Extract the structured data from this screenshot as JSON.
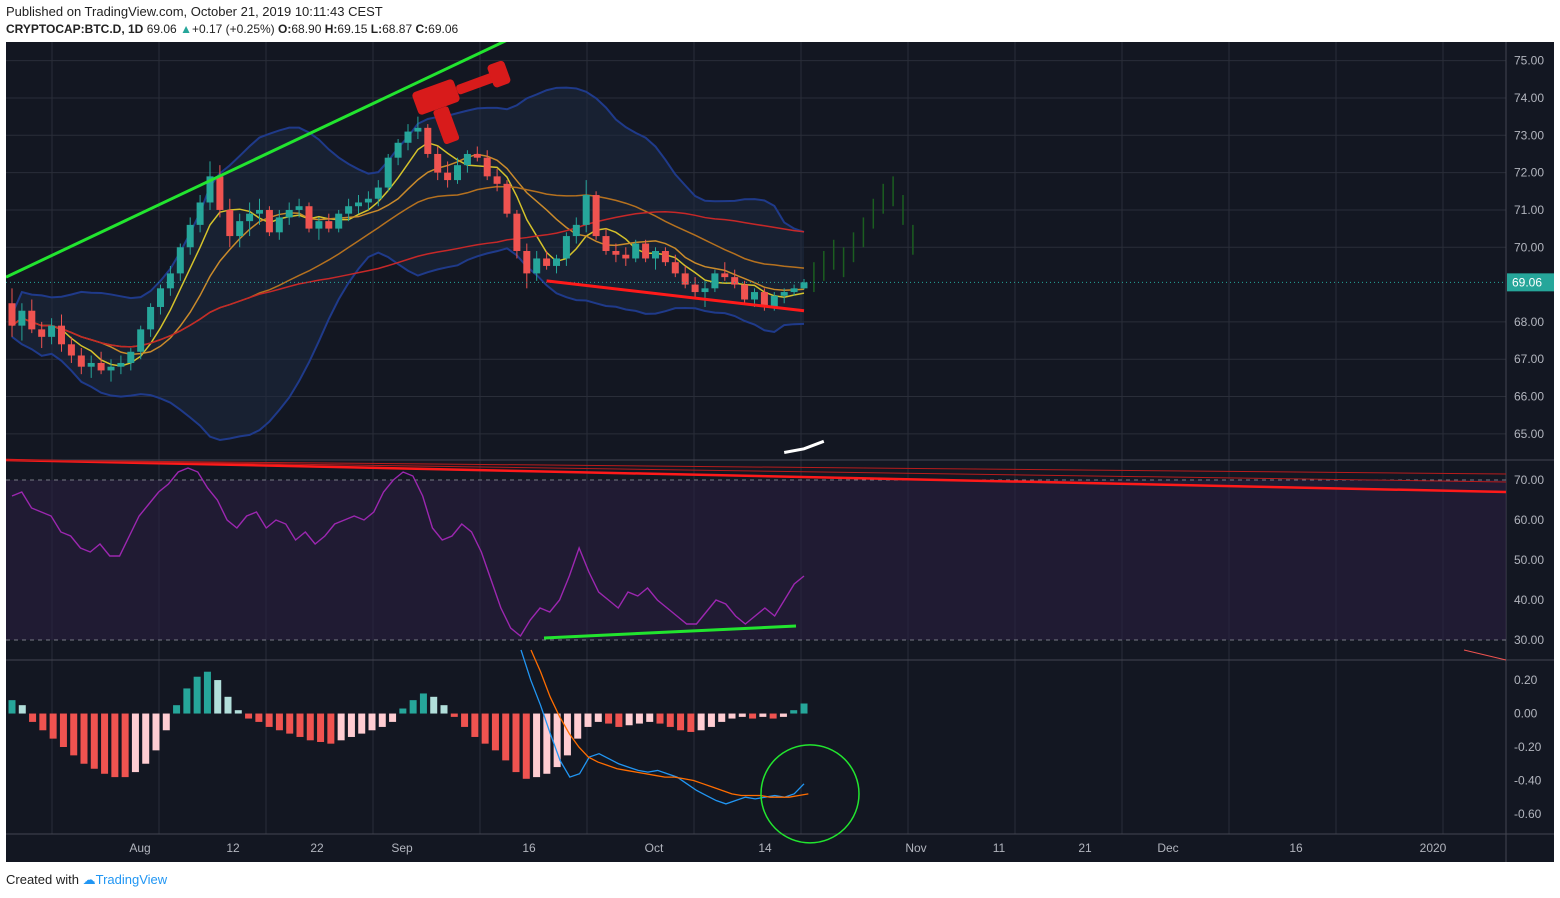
{
  "header": {
    "published": "Published on TradingView.com, October 21, 2019 10:11:43 CEST",
    "symbol": "CRYPTOCAP:BTC.D, 1D",
    "last": "69.06",
    "change": "+0.17 (+0.25%)",
    "o_label": "O:",
    "o": "68.90",
    "h_label": "H:",
    "h": "69.15",
    "l_label": "L:",
    "l": "68.87",
    "c_label": "C:",
    "c": "69.06"
  },
  "footer": {
    "created": "Created with",
    "brand": "TradingView"
  },
  "colors": {
    "background": "#131722",
    "up": "#26a69a",
    "down": "#ef5350",
    "trend_up": "#22e52f",
    "trend_down": "#ff1a1a",
    "bollinger": "#1f3a8a",
    "rsi": "#9c27b0",
    "macd": "#2196f3",
    "signal": "#ff6d00"
  },
  "axis": {
    "price_ticks": [
      "75.00",
      "74.00",
      "73.00",
      "72.00",
      "71.00",
      "70.00",
      "68.00",
      "67.00",
      "66.00",
      "65.00"
    ],
    "price_values": [
      75,
      74,
      73,
      72,
      71,
      70,
      68,
      67,
      66,
      65
    ],
    "current_price_label": "69.06",
    "rsi_ticks": [
      "70.00",
      "60.00",
      "50.00",
      "40.00",
      "30.00"
    ],
    "rsi_values": [
      70,
      60,
      50,
      40,
      30
    ],
    "macd_ticks": [
      "0.20",
      "0.00",
      "-0.20",
      "-0.40",
      "-0.60"
    ],
    "macd_values": [
      0.2,
      0,
      -0.2,
      -0.4,
      -0.6
    ],
    "time_labels": [
      "Aug",
      "12",
      "22",
      "Sep",
      "16",
      "Oct",
      "14",
      "Nov",
      "11",
      "21",
      "Dec",
      "16",
      "2020"
    ]
  },
  "chart_data": {
    "type": "candlestick",
    "symbol": "CRYPTOCAP:BTC.D",
    "interval": "1D",
    "last_close": 69.06,
    "price_range": [
      64.3,
      75.5
    ],
    "candles": [
      {
        "o": 68.5,
        "h": 68.9,
        "l": 67.6,
        "c": 67.9
      },
      {
        "o": 67.9,
        "h": 68.5,
        "l": 67.5,
        "c": 68.3
      },
      {
        "o": 68.3,
        "h": 68.6,
        "l": 67.7,
        "c": 67.8
      },
      {
        "o": 67.8,
        "h": 68.0,
        "l": 67.3,
        "c": 67.6
      },
      {
        "o": 67.6,
        "h": 68.1,
        "l": 67.4,
        "c": 67.9
      },
      {
        "o": 67.9,
        "h": 68.2,
        "l": 67.2,
        "c": 67.4
      },
      {
        "o": 67.4,
        "h": 67.6,
        "l": 66.9,
        "c": 67.1
      },
      {
        "o": 67.1,
        "h": 67.3,
        "l": 66.6,
        "c": 66.8
      },
      {
        "o": 66.8,
        "h": 67.1,
        "l": 66.5,
        "c": 66.9
      },
      {
        "o": 66.9,
        "h": 67.2,
        "l": 66.6,
        "c": 66.7
      },
      {
        "o": 66.7,
        "h": 67.0,
        "l": 66.4,
        "c": 66.8
      },
      {
        "o": 66.8,
        "h": 67.1,
        "l": 66.6,
        "c": 66.9
      },
      {
        "o": 66.9,
        "h": 67.3,
        "l": 66.7,
        "c": 67.2
      },
      {
        "o": 67.2,
        "h": 67.9,
        "l": 67.0,
        "c": 67.8
      },
      {
        "o": 67.8,
        "h": 68.5,
        "l": 67.6,
        "c": 68.4
      },
      {
        "o": 68.4,
        "h": 69.0,
        "l": 68.2,
        "c": 68.9
      },
      {
        "o": 68.9,
        "h": 69.5,
        "l": 68.7,
        "c": 69.3
      },
      {
        "o": 69.3,
        "h": 70.1,
        "l": 69.1,
        "c": 70.0
      },
      {
        "o": 70.0,
        "h": 70.8,
        "l": 69.8,
        "c": 70.6
      },
      {
        "o": 70.6,
        "h": 71.4,
        "l": 70.4,
        "c": 71.2
      },
      {
        "o": 71.2,
        "h": 72.3,
        "l": 71.0,
        "c": 71.9
      },
      {
        "o": 71.9,
        "h": 72.2,
        "l": 70.8,
        "c": 71.0
      },
      {
        "o": 71.0,
        "h": 71.3,
        "l": 70.0,
        "c": 70.3
      },
      {
        "o": 70.3,
        "h": 70.9,
        "l": 70.0,
        "c": 70.7
      },
      {
        "o": 70.7,
        "h": 71.2,
        "l": 70.3,
        "c": 70.9
      },
      {
        "o": 70.9,
        "h": 71.3,
        "l": 70.6,
        "c": 71.0
      },
      {
        "o": 71.0,
        "h": 71.1,
        "l": 70.3,
        "c": 70.4
      },
      {
        "o": 70.4,
        "h": 71.0,
        "l": 70.2,
        "c": 70.8
      },
      {
        "o": 70.8,
        "h": 71.2,
        "l": 70.6,
        "c": 71.0
      },
      {
        "o": 71.0,
        "h": 71.3,
        "l": 70.8,
        "c": 71.1
      },
      {
        "o": 71.1,
        "h": 71.2,
        "l": 70.4,
        "c": 70.5
      },
      {
        "o": 70.5,
        "h": 70.8,
        "l": 70.2,
        "c": 70.7
      },
      {
        "o": 70.7,
        "h": 70.9,
        "l": 70.4,
        "c": 70.5
      },
      {
        "o": 70.5,
        "h": 71.0,
        "l": 70.4,
        "c": 70.9
      },
      {
        "o": 70.9,
        "h": 71.3,
        "l": 70.7,
        "c": 71.1
      },
      {
        "o": 71.1,
        "h": 71.4,
        "l": 70.9,
        "c": 71.2
      },
      {
        "o": 71.2,
        "h": 71.5,
        "l": 71.0,
        "c": 71.3
      },
      {
        "o": 71.3,
        "h": 71.8,
        "l": 71.1,
        "c": 71.6
      },
      {
        "o": 71.6,
        "h": 72.5,
        "l": 71.5,
        "c": 72.4
      },
      {
        "o": 72.4,
        "h": 72.9,
        "l": 72.2,
        "c": 72.8
      },
      {
        "o": 72.8,
        "h": 73.3,
        "l": 72.6,
        "c": 73.1
      },
      {
        "o": 73.1,
        "h": 73.5,
        "l": 72.9,
        "c": 73.2
      },
      {
        "o": 73.2,
        "h": 73.3,
        "l": 72.4,
        "c": 72.5
      },
      {
        "o": 72.5,
        "h": 72.7,
        "l": 71.8,
        "c": 72.0
      },
      {
        "o": 72.0,
        "h": 72.3,
        "l": 71.6,
        "c": 71.8
      },
      {
        "o": 71.8,
        "h": 72.4,
        "l": 71.7,
        "c": 72.2
      },
      {
        "o": 72.2,
        "h": 72.6,
        "l": 72.0,
        "c": 72.5
      },
      {
        "o": 72.5,
        "h": 72.7,
        "l": 72.3,
        "c": 72.4
      },
      {
        "o": 72.4,
        "h": 72.6,
        "l": 71.8,
        "c": 71.9
      },
      {
        "o": 71.9,
        "h": 72.1,
        "l": 71.5,
        "c": 71.7
      },
      {
        "o": 71.7,
        "h": 71.8,
        "l": 70.8,
        "c": 70.9
      },
      {
        "o": 70.9,
        "h": 71.0,
        "l": 69.7,
        "c": 69.9
      },
      {
        "o": 69.9,
        "h": 70.1,
        "l": 68.9,
        "c": 69.3
      },
      {
        "o": 69.3,
        "h": 69.9,
        "l": 69.1,
        "c": 69.7
      },
      {
        "o": 69.7,
        "h": 69.9,
        "l": 69.4,
        "c": 69.5
      },
      {
        "o": 69.5,
        "h": 69.8,
        "l": 69.3,
        "c": 69.7
      },
      {
        "o": 69.7,
        "h": 70.4,
        "l": 69.5,
        "c": 70.3
      },
      {
        "o": 70.3,
        "h": 70.8,
        "l": 70.1,
        "c": 70.6
      },
      {
        "o": 70.6,
        "h": 71.8,
        "l": 70.4,
        "c": 71.4
      },
      {
        "o": 71.4,
        "h": 71.5,
        "l": 70.2,
        "c": 70.3
      },
      {
        "o": 70.3,
        "h": 70.5,
        "l": 69.8,
        "c": 69.9
      },
      {
        "o": 69.9,
        "h": 70.1,
        "l": 69.6,
        "c": 69.8
      },
      {
        "o": 69.8,
        "h": 70.0,
        "l": 69.5,
        "c": 69.7
      },
      {
        "o": 69.7,
        "h": 70.2,
        "l": 69.6,
        "c": 70.1
      },
      {
        "o": 70.1,
        "h": 70.2,
        "l": 69.6,
        "c": 69.7
      },
      {
        "o": 69.7,
        "h": 70.0,
        "l": 69.4,
        "c": 69.9
      },
      {
        "o": 69.9,
        "h": 70.0,
        "l": 69.5,
        "c": 69.6
      },
      {
        "o": 69.6,
        "h": 69.8,
        "l": 69.2,
        "c": 69.3
      },
      {
        "o": 69.3,
        "h": 69.5,
        "l": 68.9,
        "c": 69.0
      },
      {
        "o": 69.0,
        "h": 69.2,
        "l": 68.6,
        "c": 68.8
      },
      {
        "o": 68.8,
        "h": 69.1,
        "l": 68.4,
        "c": 68.9
      },
      {
        "o": 68.9,
        "h": 69.4,
        "l": 68.8,
        "c": 69.3
      },
      {
        "o": 69.3,
        "h": 69.6,
        "l": 69.1,
        "c": 69.2
      },
      {
        "o": 69.2,
        "h": 69.4,
        "l": 68.9,
        "c": 69.0
      },
      {
        "o": 69.0,
        "h": 69.1,
        "l": 68.5,
        "c": 68.6
      },
      {
        "o": 68.6,
        "h": 68.9,
        "l": 68.4,
        "c": 68.8
      },
      {
        "o": 68.8,
        "h": 68.9,
        "l": 68.3,
        "c": 68.4
      },
      {
        "o": 68.4,
        "h": 68.8,
        "l": 68.3,
        "c": 68.7
      },
      {
        "o": 68.7,
        "h": 68.9,
        "l": 68.5,
        "c": 68.8
      },
      {
        "o": 68.8,
        "h": 69.0,
        "l": 68.7,
        "c": 68.9
      },
      {
        "o": 68.9,
        "h": 69.15,
        "l": 68.87,
        "c": 69.06
      }
    ],
    "projection": [
      69.2,
      69.5,
      69.8,
      69.6,
      70.0,
      70.4,
      70.9,
      71.3,
      71.5,
      71.0,
      70.2
    ],
    "rsi": [
      66,
      67,
      63,
      62,
      61,
      57,
      56,
      53,
      52,
      54,
      51,
      51,
      56,
      61,
      64,
      67,
      69,
      72,
      73,
      72,
      68,
      65,
      60,
      58,
      61,
      62,
      58,
      60,
      59,
      55,
      57,
      54,
      56,
      59,
      60,
      61,
      60,
      62,
      67,
      70,
      72,
      71,
      66,
      58,
      55,
      56,
      59,
      57,
      52,
      45,
      38,
      33,
      31,
      35,
      38,
      37,
      40,
      46,
      53,
      47,
      42,
      40,
      38,
      42,
      41,
      43,
      40,
      38,
      36,
      34,
      34,
      37,
      40,
      39,
      36,
      34,
      36,
      38,
      36,
      40,
      44,
      46
    ],
    "macd_hist": [
      0.08,
      0.05,
      -0.05,
      -0.1,
      -0.15,
      -0.2,
      -0.25,
      -0.3,
      -0.33,
      -0.36,
      -0.38,
      -0.38,
      -0.35,
      -0.3,
      -0.22,
      -0.1,
      0.05,
      0.15,
      0.22,
      0.25,
      0.2,
      0.1,
      0.02,
      -0.03,
      -0.05,
      -0.08,
      -0.1,
      -0.12,
      -0.14,
      -0.16,
      -0.17,
      -0.18,
      -0.16,
      -0.14,
      -0.12,
      -0.1,
      -0.08,
      -0.05,
      0.03,
      0.08,
      0.12,
      0.1,
      0.05,
      -0.02,
      -0.08,
      -0.14,
      -0.18,
      -0.22,
      -0.28,
      -0.35,
      -0.39,
      -0.38,
      -0.36,
      -0.32,
      -0.25,
      -0.15,
      -0.08,
      -0.05,
      -0.06,
      -0.08,
      -0.07,
      -0.06,
      -0.05,
      -0.06,
      -0.08,
      -0.1,
      -0.11,
      -0.1,
      -0.08,
      -0.05,
      -0.03,
      -0.02,
      -0.03,
      -0.02,
      -0.03,
      -0.02,
      0.02,
      0.06
    ],
    "macd_line": [
      0.38,
      0.2,
      0.05,
      -0.12,
      -0.28,
      -0.38,
      -0.36,
      -0.26,
      -0.24,
      -0.27,
      -0.3,
      -0.32,
      -0.34,
      -0.35,
      -0.34,
      -0.36,
      -0.38,
      -0.42,
      -0.46,
      -0.49,
      -0.52,
      -0.54,
      -0.52,
      -0.5,
      -0.51,
      -0.5,
      -0.49,
      -0.5,
      -0.48,
      -0.42
    ],
    "signal_line": [
      0.38,
      0.25,
      0.1,
      -0.02,
      -0.12,
      -0.2,
      -0.26,
      -0.29,
      -0.31,
      -0.33,
      -0.34,
      -0.35,
      -0.36,
      -0.37,
      -0.38,
      -0.38,
      -0.39,
      -0.4,
      -0.42,
      -0.44,
      -0.46,
      -0.48,
      -0.49,
      -0.49,
      -0.49,
      -0.5,
      -0.5,
      -0.5,
      -0.49,
      -0.48
    ]
  }
}
